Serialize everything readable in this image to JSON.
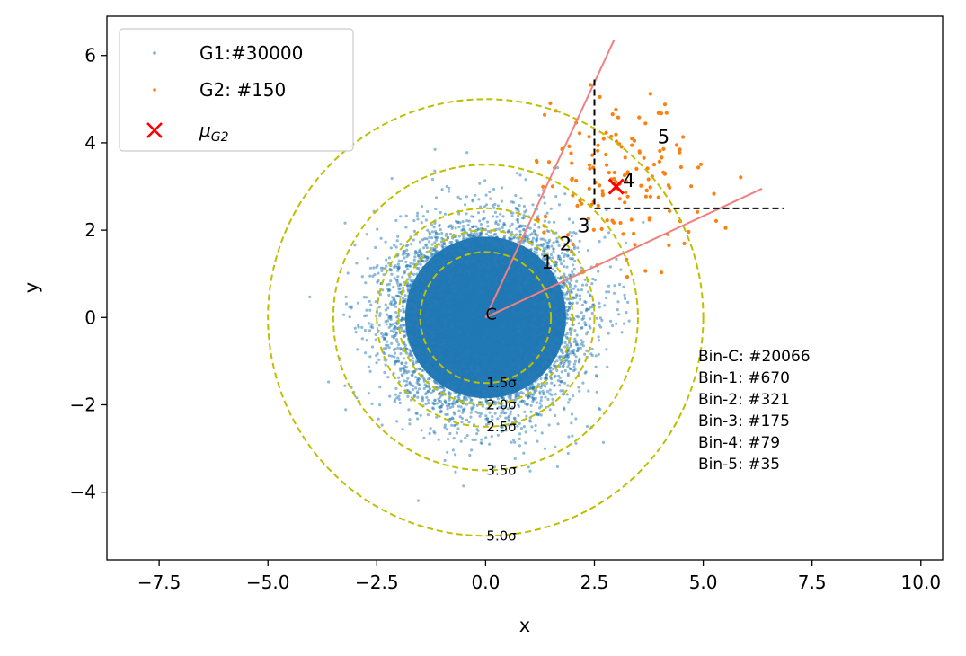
{
  "chart_data": {
    "type": "scatter",
    "xlabel": "x",
    "ylabel": "y",
    "xlim": [
      -8.7,
      10.5
    ],
    "ylim": [
      -5.55,
      6.9
    ],
    "xticks": [
      -7.5,
      -5.0,
      -2.5,
      0.0,
      2.5,
      5.0,
      7.5,
      10.0
    ],
    "xtick_labels": [
      "−7.5",
      "−5.0",
      "−2.5",
      "0.0",
      "2.5",
      "5.0",
      "7.5",
      "10.0"
    ],
    "yticks": [
      -4,
      -2,
      0,
      2,
      4,
      6
    ],
    "ytick_labels": [
      "−4",
      "−2",
      "0",
      "2",
      "4",
      "6"
    ],
    "grid": false,
    "legend_position": "top-left",
    "series": [
      {
        "name": "G1:#30000",
        "kind": "scatter",
        "color": "#1f77b4",
        "distribution": {
          "center": [
            0,
            0
          ],
          "sigma": 1.0
        },
        "count": 30000
      },
      {
        "name": "G2: #150",
        "kind": "scatter",
        "color": "#ff7f0e",
        "distribution": {
          "center": [
            3.0,
            3.0
          ],
          "sigma": 1.0
        },
        "count": 150
      },
      {
        "name": "μ",
        "name_subscript": "G2",
        "kind": "marker",
        "marker": "x",
        "color": "#ff0000",
        "x": 3.0,
        "y": 3.0
      }
    ],
    "circles": [
      {
        "radius": 1.5,
        "label": "1.5σ"
      },
      {
        "radius": 2.0,
        "label": "2.0σ"
      },
      {
        "radius": 2.5,
        "label": "2.5σ"
      },
      {
        "radius": 3.5,
        "label": "3.5σ"
      },
      {
        "radius": 5.0,
        "label": "5.0σ"
      }
    ],
    "circle_color": "#bfbf00",
    "rays": [
      {
        "from": [
          0,
          0
        ],
        "to": [
          2.95,
          6.35
        ]
      },
      {
        "from": [
          0,
          0
        ],
        "to": [
          6.35,
          2.95
        ]
      }
    ],
    "ray_color": "#f08080",
    "box_corner": [
      2.5,
      2.5
    ],
    "box_lines": [
      {
        "from": [
          2.5,
          5.45
        ],
        "to": [
          2.5,
          2.5
        ]
      },
      {
        "from": [
          2.5,
          2.5
        ],
        "to": [
          6.85,
          2.5
        ]
      }
    ],
    "center_label": {
      "text": "C",
      "x": 0.0,
      "y": 0.0
    },
    "region_labels": [
      {
        "text": "1",
        "x": 1.28,
        "y": 1.28
      },
      {
        "text": "2",
        "x": 1.7,
        "y": 1.7
      },
      {
        "text": "3",
        "x": 2.12,
        "y": 2.12
      },
      {
        "text": "4",
        "x": 3.15,
        "y": 3.15
      },
      {
        "text": "5",
        "x": 3.95,
        "y": 4.15
      }
    ],
    "bin_counts": [
      "Bin-C: #20066",
      "Bin-1: #670",
      "Bin-2: #321",
      "Bin-3: #175",
      "Bin-4: #79",
      "Bin-5: #35"
    ]
  }
}
